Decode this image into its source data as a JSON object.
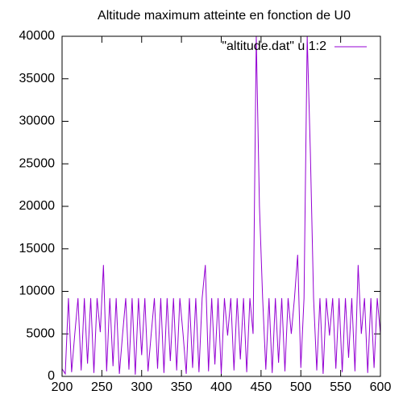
{
  "chart_data": {
    "type": "line",
    "title": "Altitude maximum atteinte en fonction de U0",
    "x": [
      200,
      204,
      208,
      212,
      216,
      220,
      224,
      228,
      232,
      236,
      240,
      244,
      248,
      252,
      256,
      260,
      264,
      268,
      272,
      276,
      280,
      284,
      288,
      292,
      296,
      300,
      304,
      308,
      312,
      316,
      320,
      324,
      328,
      332,
      336,
      340,
      344,
      348,
      352,
      356,
      360,
      364,
      368,
      372,
      376,
      380,
      384,
      388,
      392,
      396,
      400,
      404,
      408,
      412,
      416,
      420,
      424,
      428,
      432,
      436,
      440,
      444,
      448,
      452,
      456,
      460,
      464,
      468,
      472,
      476,
      480,
      484,
      488,
      492,
      496,
      500,
      504,
      508,
      512,
      516,
      520,
      524,
      528,
      532,
      536,
      540,
      544,
      548,
      552,
      556,
      560,
      564,
      568,
      572,
      576,
      580,
      584,
      588,
      592,
      596,
      600
    ],
    "series": [
      {
        "name": "\"altitude.dat\" u 1:2",
        "color": "#9400d3",
        "values": [
          900,
          300,
          9200,
          500,
          5000,
          9200,
          700,
          9200,
          1500,
          9200,
          400,
          9200,
          5200,
          13100,
          600,
          9200,
          1200,
          9200,
          300,
          4900,
          9200,
          800,
          9200,
          200,
          9200,
          2500,
          9200,
          600,
          5000,
          9200,
          900,
          9200,
          400,
          9200,
          1800,
          9200,
          700,
          9200,
          5000,
          300,
          9200,
          1000,
          9200,
          500,
          9200,
          13100,
          600,
          9200,
          1400,
          9200,
          300,
          9200,
          4800,
          9200,
          700,
          9200,
          2000,
          9200,
          500,
          9200,
          5000,
          40000,
          20000,
          9200,
          800,
          9200,
          400,
          9200,
          1600,
          9200,
          600,
          9200,
          5000,
          9200,
          14300,
          1000,
          9200,
          40000,
          26200,
          9200,
          700,
          9200,
          300,
          9200,
          4800,
          9200,
          900,
          9200,
          500,
          9200,
          2200,
          9200,
          600,
          13100,
          5000,
          9200,
          400,
          9200,
          1000,
          9200,
          5000
        ]
      }
    ],
    "xlim": [
      200,
      600
    ],
    "xticks": [
      200,
      250,
      300,
      350,
      400,
      450,
      500,
      550,
      600
    ],
    "ylim": [
      0,
      40000
    ],
    "yticks": [
      0,
      5000,
      10000,
      15000,
      20000,
      25000,
      30000,
      35000,
      40000
    ],
    "legend": "top-right"
  }
}
